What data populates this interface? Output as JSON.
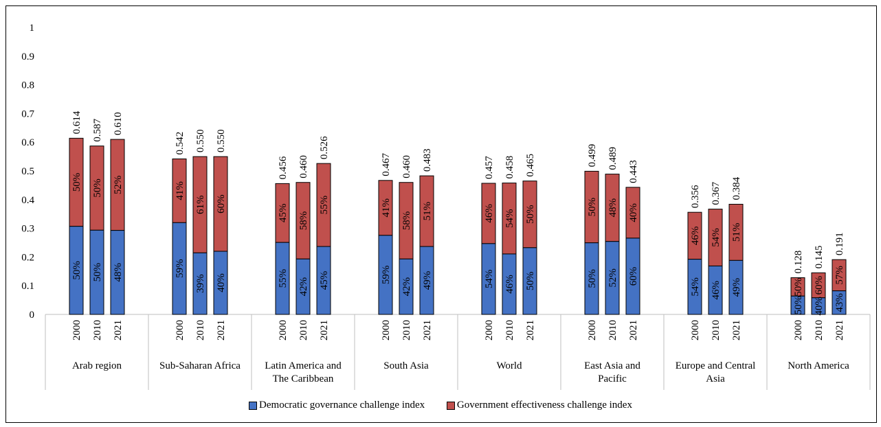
{
  "chart_data": {
    "type": "bar",
    "stacked": true,
    "title": "",
    "xlabel": "",
    "ylabel": "",
    "ylim": [
      0,
      1
    ],
    "yticks": [
      "0",
      "0.1",
      "0.2",
      "0.3",
      "0.4",
      "0.5",
      "0.6",
      "0.7",
      "0.8",
      "0.9",
      "1"
    ],
    "grid": false,
    "legend_position": "bottom",
    "colors": {
      "democratic": "#4472C4",
      "government": "#C0504D"
    },
    "groups": [
      {
        "name": "Arab region",
        "lines": [
          "Arab region"
        ],
        "years": [
          "2000",
          "2010",
          "2021"
        ],
        "totals": [
          0.614,
          0.587,
          0.61
        ],
        "totals_label": [
          "0.614",
          "0.587",
          "0.610"
        ],
        "dem_share": [
          "50%",
          "50%",
          "48%"
        ],
        "gov_share": [
          "50%",
          "50%",
          "52%"
        ]
      },
      {
        "name": "Sub-Saharan Africa",
        "lines": [
          "Sub-Saharan Africa"
        ],
        "years": [
          "2000",
          "2010",
          "2021"
        ],
        "totals": [
          0.542,
          0.55,
          0.55
        ],
        "totals_label": [
          "0.542",
          "0.550",
          "0.550"
        ],
        "dem_share": [
          "59%",
          "39%",
          "40%"
        ],
        "gov_share": [
          "41%",
          "61%",
          "60%"
        ]
      },
      {
        "name": "Latin America and The Caribbean",
        "lines": [
          "Latin America and",
          "The Caribbean"
        ],
        "years": [
          "2000",
          "2010",
          "2021"
        ],
        "totals": [
          0.456,
          0.46,
          0.526
        ],
        "totals_label": [
          "0.456",
          "0.460",
          "0.526"
        ],
        "dem_share": [
          "55%",
          "42%",
          "45%"
        ],
        "gov_share": [
          "45%",
          "58%",
          "55%"
        ]
      },
      {
        "name": "South Asia",
        "lines": [
          "South Asia"
        ],
        "years": [
          "2000",
          "2010",
          "2021"
        ],
        "totals": [
          0.467,
          0.46,
          0.483
        ],
        "totals_label": [
          "0.467",
          "0.460",
          "0.483"
        ],
        "dem_share": [
          "59%",
          "42%",
          "49%"
        ],
        "gov_share": [
          "41%",
          "58%",
          "51%"
        ]
      },
      {
        "name": "World",
        "lines": [
          "World"
        ],
        "years": [
          "2000",
          "2010",
          "2021"
        ],
        "totals": [
          0.457,
          0.458,
          0.465
        ],
        "totals_label": [
          "0.457",
          "0.458",
          "0.465"
        ],
        "dem_share": [
          "54%",
          "46%",
          "50%"
        ],
        "gov_share": [
          "46%",
          "54%",
          "50%"
        ]
      },
      {
        "name": "East Asia and Pacific",
        "lines": [
          "East Asia and",
          "Pacific"
        ],
        "years": [
          "2000",
          "2010",
          "2021"
        ],
        "totals": [
          0.499,
          0.489,
          0.443
        ],
        "totals_label": [
          "0.499",
          "0.489",
          "0.443"
        ],
        "dem_share": [
          "50%",
          "52%",
          "60%"
        ],
        "gov_share": [
          "50%",
          "48%",
          "40%"
        ]
      },
      {
        "name": "Europe and Central Asia",
        "lines": [
          "Europe and Central",
          "Asia"
        ],
        "years": [
          "2000",
          "2010",
          "2021"
        ],
        "totals": [
          0.356,
          0.367,
          0.384
        ],
        "totals_label": [
          "0.356",
          "0.367",
          "0.384"
        ],
        "dem_share": [
          "54%",
          "46%",
          "49%"
        ],
        "gov_share": [
          "46%",
          "54%",
          "51%"
        ]
      },
      {
        "name": "North America",
        "lines": [
          "North America"
        ],
        "years": [
          "2000",
          "2010",
          "2021"
        ],
        "totals": [
          0.128,
          0.145,
          0.191
        ],
        "totals_label": [
          "0.128",
          "0.145",
          "0.191"
        ],
        "dem_share": [
          "50%",
          "40%",
          "43%"
        ],
        "gov_share": [
          "50%",
          "60%",
          "57%"
        ]
      }
    ],
    "series": [
      {
        "name": "Democratic governance challenge index",
        "key": "democratic"
      },
      {
        "name": "Government effectiveness challenge index",
        "key": "government"
      }
    ]
  }
}
